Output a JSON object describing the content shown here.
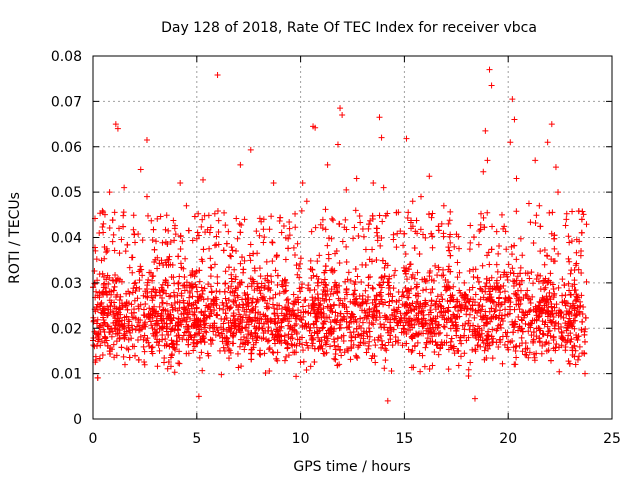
{
  "chart_data": {
    "type": "scatter",
    "title": "Day 128 of 2018, Rate Of TEC Index for receiver vbca",
    "xlabel": "GPS time / hours",
    "ylabel": "ROTI / TECUs",
    "xlim": [
      0,
      25
    ],
    "ylim": [
      0,
      0.08
    ],
    "x_ticks": [
      "0",
      "5",
      "10",
      "15",
      "20",
      "25"
    ],
    "x_tick_values": [
      0,
      5,
      10,
      15,
      20,
      25
    ],
    "y_ticks": [
      "0",
      "0.01",
      "0.02",
      "0.03",
      "0.04",
      "0.05",
      "0.06",
      "0.07",
      "0.08"
    ],
    "y_tick_values": [
      0,
      0.01,
      0.02,
      0.03,
      0.04,
      0.05,
      0.06,
      0.07,
      0.08
    ],
    "grid": true,
    "legend": "none",
    "marker": "plus",
    "color": "#ff0000",
    "x_range_of_data": [
      0,
      23.8
    ],
    "typical_band": [
      0.008,
      0.035
    ],
    "points": [
      [
        0.3,
        0.041
      ],
      [
        0.5,
        0.043
      ],
      [
        0.8,
        0.05
      ],
      [
        1.1,
        0.065
      ],
      [
        1.2,
        0.064
      ],
      [
        1.5,
        0.051
      ],
      [
        2.3,
        0.055
      ],
      [
        2.6,
        0.049
      ],
      [
        2.6,
        0.0615
      ],
      [
        3.3,
        0.035
      ],
      [
        4.2,
        0.052
      ],
      [
        4.5,
        0.047
      ],
      [
        5.1,
        0.005
      ],
      [
        5.3,
        0.0527
      ],
      [
        6.0,
        0.0758
      ],
      [
        6.6,
        0.036
      ],
      [
        7.1,
        0.056
      ],
      [
        7.3,
        0.044
      ],
      [
        7.6,
        0.0593
      ],
      [
        8.7,
        0.052
      ],
      [
        9.3,
        0.03
      ],
      [
        10.1,
        0.052
      ],
      [
        10.3,
        0.048
      ],
      [
        10.6,
        0.0645
      ],
      [
        10.7,
        0.0642
      ],
      [
        11.2,
        0.0462
      ],
      [
        11.3,
        0.056
      ],
      [
        11.8,
        0.0605
      ],
      [
        11.9,
        0.0685
      ],
      [
        12.0,
        0.067
      ],
      [
        12.2,
        0.0505
      ],
      [
        12.7,
        0.053
      ],
      [
        13.5,
        0.052
      ],
      [
        13.8,
        0.0665
      ],
      [
        13.9,
        0.062
      ],
      [
        14.0,
        0.051
      ],
      [
        14.2,
        0.004
      ],
      [
        15.1,
        0.0618
      ],
      [
        15.4,
        0.048
      ],
      [
        15.8,
        0.049
      ],
      [
        16.2,
        0.0535
      ],
      [
        16.8,
        0.043
      ],
      [
        16.9,
        0.047
      ],
      [
        17.6,
        0.0402
      ],
      [
        18.4,
        0.0045
      ],
      [
        18.8,
        0.0545
      ],
      [
        18.9,
        0.0635
      ],
      [
        19.0,
        0.057
      ],
      [
        19.1,
        0.077
      ],
      [
        19.2,
        0.0735
      ],
      [
        19.7,
        0.045
      ],
      [
        20.1,
        0.061
      ],
      [
        20.2,
        0.0705
      ],
      [
        20.3,
        0.066
      ],
      [
        20.4,
        0.053
      ],
      [
        21.0,
        0.0475
      ],
      [
        21.3,
        0.057
      ],
      [
        21.5,
        0.047
      ],
      [
        21.9,
        0.061
      ],
      [
        22.1,
        0.065
      ],
      [
        22.3,
        0.0555
      ],
      [
        22.4,
        0.05
      ],
      [
        22.8,
        0.044
      ],
      [
        23.0,
        0.032
      ],
      [
        23.5,
        0.036
      ],
      [
        23.7,
        0.01
      ]
    ]
  }
}
